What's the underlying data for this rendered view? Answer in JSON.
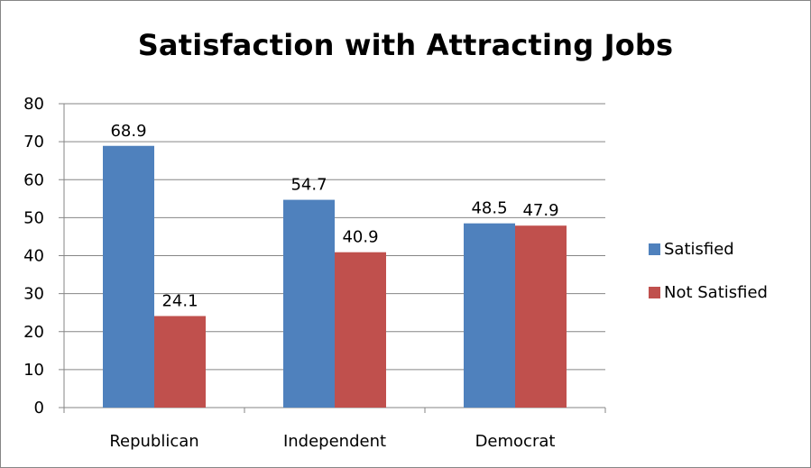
{
  "chart_data": {
    "type": "bar",
    "title": "Satisfaction with Attracting Jobs",
    "categories": [
      "Republican",
      "Independent",
      "Democrat"
    ],
    "series": [
      {
        "name": "Satisfied",
        "values": [
          68.9,
          54.7,
          48.5
        ],
        "color": "#4f81bd"
      },
      {
        "name": "Not Satisfied",
        "values": [
          24.1,
          40.9,
          47.9
        ],
        "color": "#c0504d"
      }
    ],
    "ylim": [
      0,
      80
    ],
    "yticks": [
      0,
      10,
      20,
      30,
      40,
      50,
      60,
      70,
      80
    ],
    "grid": true,
    "legend_position": "right",
    "data_labels": true
  }
}
